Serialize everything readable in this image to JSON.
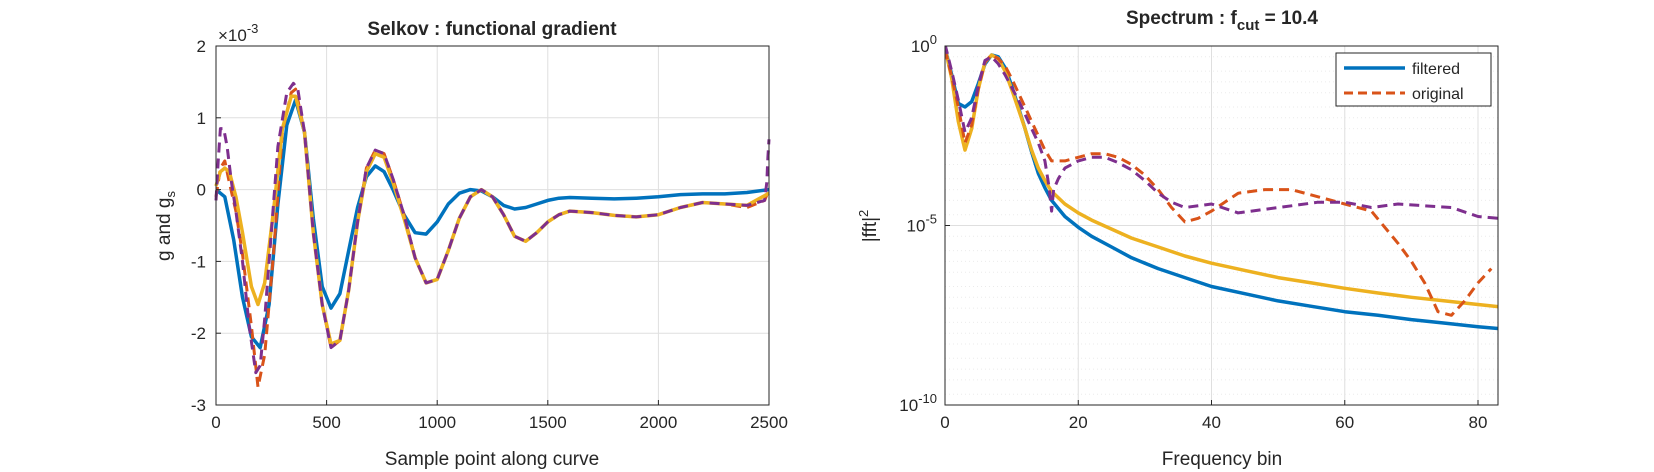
{
  "chart_data": [
    {
      "type": "line",
      "title": "Selkov : functional gradient",
      "xlabel": "Sample point along curve",
      "ylabel_main": "g and g",
      "ylabel_sub": "s",
      "exponent_base": "×10",
      "exponent_power": "-3",
      "xlim": [
        0,
        2500
      ],
      "ylim": [
        -3,
        2
      ],
      "xticks": [
        0,
        500,
        1000,
        1500,
        2000,
        2500
      ],
      "xtick_labels": [
        "0",
        "500",
        "1000",
        "1500",
        "2000",
        "2500"
      ],
      "yticks": [
        -3,
        -2,
        -1,
        0,
        1,
        2
      ],
      "ytick_labels": [
        "-3",
        "-2",
        "-1",
        "0",
        "1",
        "2"
      ],
      "grid": true,
      "series": [
        {
          "color": "#0072BD",
          "style": "solid",
          "x": [
            0,
            40,
            80,
            120,
            160,
            200,
            240,
            280,
            320,
            360,
            400,
            440,
            480,
            520,
            560,
            600,
            640,
            680,
            720,
            760,
            800,
            850,
            900,
            950,
            1000,
            1050,
            1100,
            1150,
            1200,
            1250,
            1300,
            1350,
            1400,
            1450,
            1500,
            1550,
            1600,
            1700,
            1800,
            1900,
            2000,
            2100,
            2200,
            2300,
            2400,
            2500
          ],
          "y": [
            0.0,
            -0.1,
            -0.7,
            -1.5,
            -2.05,
            -2.2,
            -1.6,
            -0.2,
            0.9,
            1.25,
            0.8,
            -0.4,
            -1.35,
            -1.65,
            -1.45,
            -0.85,
            -0.25,
            0.18,
            0.33,
            0.25,
            0.0,
            -0.35,
            -0.6,
            -0.62,
            -0.45,
            -0.2,
            -0.05,
            0.0,
            -0.02,
            -0.1,
            -0.22,
            -0.27,
            -0.25,
            -0.2,
            -0.15,
            -0.12,
            -0.11,
            -0.12,
            -0.13,
            -0.12,
            -0.1,
            -0.07,
            -0.06,
            -0.06,
            -0.04,
            0.0
          ]
        },
        {
          "color": "#D95319",
          "style": "dashed",
          "x": [
            0,
            20,
            40,
            60,
            90,
            120,
            160,
            190,
            220,
            260,
            300,
            340,
            360,
            400,
            440,
            480,
            520,
            560,
            600,
            640,
            680,
            720,
            760,
            800,
            850,
            900,
            950,
            1000,
            1050,
            1100,
            1150,
            1200,
            1250,
            1300,
            1350,
            1400,
            1450,
            1500,
            1550,
            1600,
            1700,
            1800,
            1900,
            2000,
            2100,
            2200,
            2300,
            2400,
            2480,
            2500
          ],
          "y": [
            -0.1,
            0.3,
            0.4,
            0.1,
            -0.3,
            -0.9,
            -1.9,
            -2.75,
            -2.3,
            -0.9,
            0.8,
            1.35,
            1.4,
            0.8,
            -0.6,
            -1.6,
            -2.2,
            -2.1,
            -1.4,
            -0.45,
            0.3,
            0.55,
            0.5,
            0.15,
            -0.35,
            -0.95,
            -1.3,
            -1.25,
            -0.85,
            -0.4,
            -0.1,
            0.0,
            -0.1,
            -0.35,
            -0.65,
            -0.72,
            -0.6,
            -0.45,
            -0.35,
            -0.3,
            -0.32,
            -0.36,
            -0.38,
            -0.35,
            -0.25,
            -0.18,
            -0.2,
            -0.25,
            -0.15,
            0.0
          ]
        },
        {
          "color": "#EDB120",
          "style": "solid",
          "x": [
            0,
            20,
            40,
            60,
            90,
            120,
            160,
            190,
            220,
            260,
            300,
            340,
            360,
            400,
            440,
            480,
            520,
            560,
            600,
            640,
            680,
            720,
            760,
            800,
            850,
            900,
            950,
            1000,
            1050,
            1100,
            1150,
            1200,
            1250,
            1300,
            1350,
            1400,
            1450,
            1500,
            1550,
            1600,
            1700,
            1800,
            1900,
            2000,
            2100,
            2200,
            2300,
            2400,
            2500
          ],
          "y": [
            0.05,
            0.25,
            0.3,
            0.25,
            -0.1,
            -0.6,
            -1.35,
            -1.6,
            -1.3,
            -0.3,
            0.85,
            1.3,
            1.3,
            0.8,
            -0.6,
            -1.6,
            -2.15,
            -2.1,
            -1.4,
            -0.45,
            0.25,
            0.5,
            0.45,
            0.1,
            -0.4,
            -0.95,
            -1.3,
            -1.25,
            -0.85,
            -0.4,
            -0.1,
            0.0,
            -0.1,
            -0.35,
            -0.65,
            -0.72,
            -0.6,
            -0.45,
            -0.35,
            -0.3,
            -0.32,
            -0.36,
            -0.38,
            -0.35,
            -0.25,
            -0.18,
            -0.2,
            -0.22,
            -0.05
          ]
        },
        {
          "color": "#7E2F8E",
          "style": "dashed",
          "x": [
            0,
            10,
            20,
            35,
            50,
            70,
            90,
            120,
            150,
            180,
            200,
            220,
            250,
            280,
            320,
            350,
            370,
            400,
            440,
            480,
            520,
            560,
            600,
            640,
            680,
            720,
            760,
            800,
            850,
            900,
            950,
            1000,
            1050,
            1100,
            1150,
            1200,
            1250,
            1300,
            1350,
            1400,
            1450,
            1500,
            1550,
            1600,
            1700,
            1800,
            1900,
            2000,
            2100,
            2200,
            2300,
            2400,
            2480,
            2490,
            2495,
            2500
          ],
          "y": [
            -0.15,
            0.4,
            0.85,
            0.85,
            0.6,
            0.1,
            -0.3,
            -1.0,
            -1.9,
            -2.55,
            -2.45,
            -1.8,
            -0.6,
            0.6,
            1.35,
            1.48,
            1.4,
            0.8,
            -0.6,
            -1.6,
            -2.2,
            -2.1,
            -1.4,
            -0.45,
            0.3,
            0.55,
            0.5,
            0.15,
            -0.35,
            -0.95,
            -1.3,
            -1.25,
            -0.85,
            -0.4,
            -0.1,
            0.0,
            -0.1,
            -0.35,
            -0.65,
            -0.72,
            -0.6,
            -0.45,
            -0.35,
            -0.3,
            -0.32,
            -0.36,
            -0.38,
            -0.35,
            -0.25,
            -0.18,
            -0.2,
            -0.22,
            -0.15,
            0.1,
            0.45,
            0.7
          ]
        }
      ]
    },
    {
      "type": "line",
      "title_main": "Spectrum : f",
      "title_sub": "cut",
      "title_tail": " = 10.4",
      "xlabel": "Frequency bin",
      "ylabel_main": "|fft|",
      "ylabel_sup": "2",
      "yscale": "log",
      "xlim": [
        0,
        83
      ],
      "ylim": [
        1e-10,
        1
      ],
      "xticks": [
        0,
        20,
        40,
        60,
        80
      ],
      "xtick_labels": [
        "0",
        "20",
        "40",
        "60",
        "80"
      ],
      "yticks": [
        -10,
        -5,
        0
      ],
      "ytick_labels": [
        {
          "base": "10",
          "exp": "-10"
        },
        {
          "base": "10",
          "exp": "-5"
        },
        {
          "base": "10",
          "exp": "0"
        }
      ],
      "grid": true,
      "legend": {
        "location": "top-right",
        "entries": [
          {
            "label": "filtered",
            "color": "#0072BD",
            "style": "solid"
          },
          {
            "label": "original",
            "color": "#D95319",
            "style": "dashed"
          }
        ]
      },
      "series": [
        {
          "color": "#0072BD",
          "style": "solid",
          "x": [
            0,
            1,
            2,
            3,
            4,
            5,
            6,
            7,
            8,
            9,
            10,
            11,
            12,
            13,
            14,
            15,
            16,
            18,
            20,
            22,
            25,
            28,
            32,
            36,
            40,
            45,
            50,
            55,
            60,
            65,
            70,
            75,
            80,
            83
          ],
          "y": [
            -0.05,
            -0.8,
            -1.6,
            -1.7,
            -1.55,
            -1.05,
            -0.5,
            -0.25,
            -0.3,
            -0.6,
            -1.1,
            -1.7,
            -2.3,
            -2.95,
            -3.55,
            -3.95,
            -4.3,
            -4.75,
            -5.05,
            -5.3,
            -5.6,
            -5.9,
            -6.2,
            -6.45,
            -6.7,
            -6.9,
            -7.1,
            -7.25,
            -7.4,
            -7.5,
            -7.62,
            -7.72,
            -7.82,
            -7.87
          ]
        },
        {
          "color": "#EDB120",
          "style": "solid",
          "x": [
            0,
            1,
            2,
            3,
            4,
            5,
            6,
            7,
            8,
            9,
            10,
            11,
            12,
            13,
            14,
            15,
            16,
            18,
            20,
            22,
            25,
            28,
            32,
            36,
            40,
            45,
            50,
            55,
            60,
            65,
            70,
            75,
            80,
            83
          ],
          "y": [
            -0.05,
            -0.9,
            -2.1,
            -2.9,
            -2.3,
            -1.2,
            -0.45,
            -0.25,
            -0.35,
            -0.7,
            -1.2,
            -1.75,
            -2.3,
            -2.9,
            -3.4,
            -3.75,
            -4.05,
            -4.4,
            -4.65,
            -4.85,
            -5.1,
            -5.35,
            -5.6,
            -5.85,
            -6.05,
            -6.25,
            -6.45,
            -6.6,
            -6.75,
            -6.88,
            -7.0,
            -7.1,
            -7.2,
            -7.26
          ]
        },
        {
          "color": "#D95319",
          "style": "dashed",
          "x": [
            0,
            1,
            2,
            3,
            4,
            5,
            6,
            7,
            8,
            9,
            10,
            11,
            12,
            13,
            14,
            15,
            16,
            17,
            18,
            20,
            22,
            24,
            26,
            28,
            30,
            32,
            34,
            36,
            38,
            40,
            44,
            48,
            52,
            56,
            60,
            64,
            68,
            70,
            72,
            74,
            76,
            78,
            80,
            82
          ],
          "y": [
            -0.1,
            -0.85,
            -1.7,
            -2.7,
            -2.2,
            -1.2,
            -0.45,
            -0.25,
            -0.35,
            -0.55,
            -0.9,
            -1.3,
            -1.7,
            -2.1,
            -2.5,
            -2.9,
            -3.2,
            -3.2,
            -3.2,
            -3.1,
            -3.0,
            -3.0,
            -3.1,
            -3.3,
            -3.6,
            -4.0,
            -4.5,
            -4.9,
            -4.8,
            -4.6,
            -4.1,
            -4.0,
            -4.0,
            -4.2,
            -4.4,
            -4.6,
            -5.5,
            -6.0,
            -6.6,
            -7.4,
            -7.5,
            -7.1,
            -6.6,
            -6.2
          ]
        },
        {
          "color": "#7E2F8E",
          "style": "dashed",
          "x": [
            0,
            1,
            2,
            3,
            4,
            5,
            6,
            7,
            8,
            9,
            10,
            11,
            12,
            13,
            14,
            15,
            15.6,
            16,
            16.3,
            17,
            18,
            20,
            22,
            24,
            26,
            28,
            30,
            32,
            34,
            36,
            38,
            40,
            44,
            48,
            52,
            56,
            60,
            64,
            68,
            72,
            76,
            80,
            83
          ],
          "y": [
            0.05,
            -0.7,
            -1.5,
            -2.4,
            -2.0,
            -1.1,
            -0.4,
            -0.3,
            -0.5,
            -0.8,
            -1.15,
            -1.5,
            -1.9,
            -2.3,
            -2.7,
            -3.2,
            -3.9,
            -4.6,
            -4.0,
            -3.7,
            -3.4,
            -3.2,
            -3.1,
            -3.1,
            -3.25,
            -3.45,
            -3.75,
            -4.1,
            -4.35,
            -4.5,
            -4.45,
            -4.4,
            -4.65,
            -4.55,
            -4.45,
            -4.35,
            -4.35,
            -4.5,
            -4.4,
            -4.45,
            -4.5,
            -4.75,
            -4.8
          ]
        }
      ]
    }
  ]
}
